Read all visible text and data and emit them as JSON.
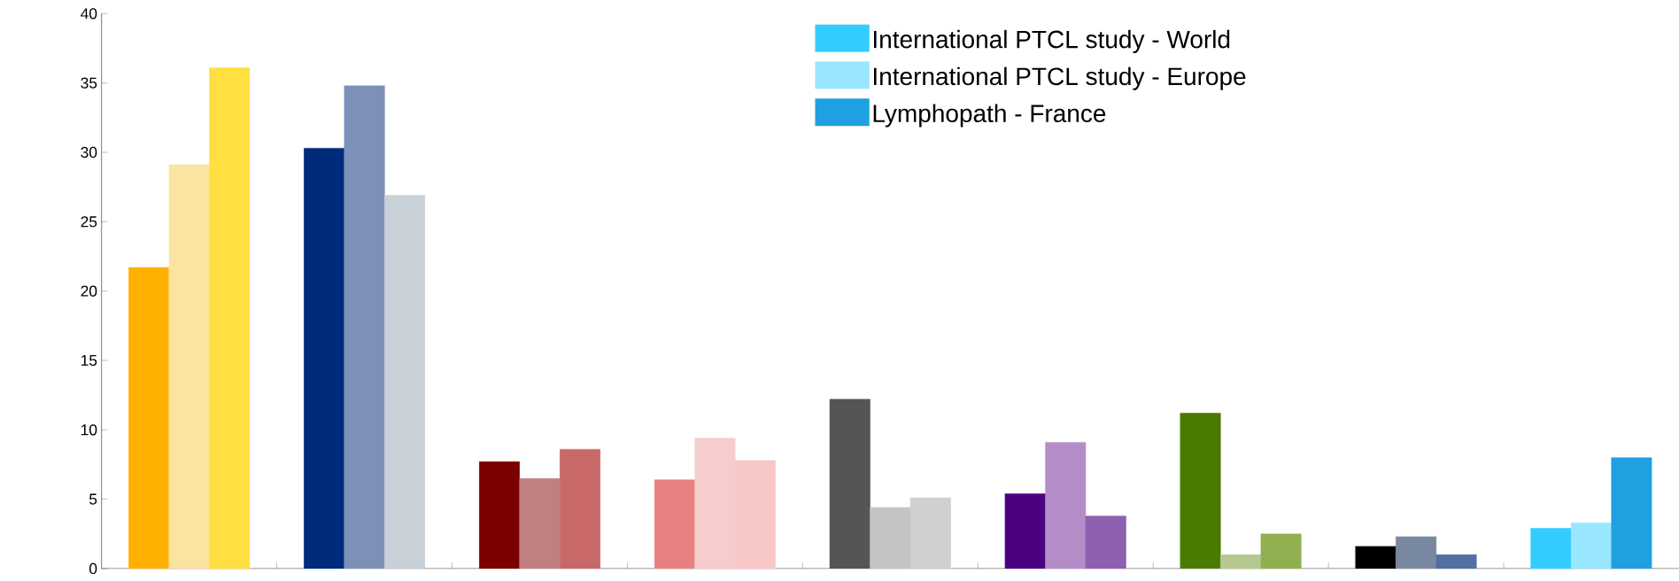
{
  "chart_data": {
    "type": "bar",
    "categories": [
      null,
      null,
      null,
      null,
      null,
      null,
      null,
      null,
      null
    ],
    "series": [
      {
        "name": "International PTCL study - World",
        "colors": [
          "#ffb000",
          "#002a7a",
          "#7a0000",
          "#e88080",
          "#555555",
          "#4b0080",
          "#4a7a00",
          "#000000",
          "#33ccff"
        ],
        "values": [
          21.7,
          30.3,
          7.7,
          6.4,
          12.2,
          5.4,
          11.2,
          1.6,
          2.9
        ]
      },
      {
        "name": "International PTCL study - Europe",
        "colors": [
          "#fbe3a0",
          "#7d90b8",
          "#c08080",
          "#f7cccc",
          "#c4c4c4",
          "#b48cc8",
          "#b4c890",
          "#7888a0",
          "#99e6ff"
        ],
        "values": [
          29.1,
          34.8,
          6.5,
          9.4,
          4.4,
          9.1,
          1.0,
          2.3,
          3.3
        ]
      },
      {
        "name": "Lymphopath - France",
        "colors": [
          "#ffe040",
          "#c8d0d8",
          "#c86868",
          "#f8c8c8",
          "#d0d0d0",
          "#9060b0",
          "#90b050",
          "#5070a0",
          "#1fa0e0"
        ],
        "values": [
          36.1,
          26.9,
          8.6,
          7.8,
          5.1,
          3.8,
          2.5,
          1.0,
          8.0
        ]
      }
    ],
    "ylim": [
      0,
      40
    ],
    "yticks": [
      0,
      5,
      10,
      15,
      20,
      25,
      30,
      35,
      40
    ],
    "grid": false,
    "legend": "top right"
  }
}
